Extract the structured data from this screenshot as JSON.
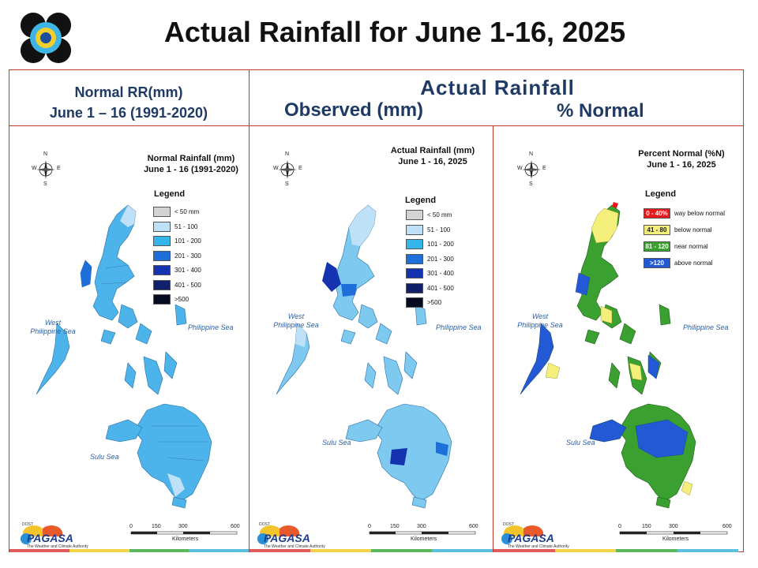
{
  "header": {
    "title": "Actual Rainfall for June 1-16, 2025",
    "normal_label_line1": "Normal RR(mm)",
    "normal_label_line2": "June 1 – 16 (1991-2020)",
    "actual_label": "Actual Rainfall",
    "observed_label": "Observed (mm)",
    "percent_label": "% Normal"
  },
  "maps": [
    {
      "title_line1": "Normal Rainfall (mm)",
      "title_line2": "June 1 - 16 (1991-2020)",
      "legend_title": "Legend",
      "legend": [
        {
          "label": "< 50 mm",
          "color": "#d3d3d3"
        },
        {
          "label": "51 - 100",
          "color": "#bfe1f7"
        },
        {
          "label": "101 - 200",
          "color": "#35b6ea"
        },
        {
          "label": "201 - 300",
          "color": "#1e6fd9"
        },
        {
          "label": "301 - 400",
          "color": "#1532b0"
        },
        {
          "label": "401 - 500",
          "color": "#10206a"
        },
        {
          "label": ">500",
          "color": "#060b22"
        }
      ],
      "land_color": "#4cb4ea"
    },
    {
      "title_line1": "Actual Rainfall (mm)",
      "title_line2": "June 1 - 16, 2025",
      "legend_title": "Legend",
      "legend": [
        {
          "label": "< 50 mm",
          "color": "#d3d3d3"
        },
        {
          "label": "51 - 100",
          "color": "#bfe1f7"
        },
        {
          "label": "101 - 200",
          "color": "#35b6ea"
        },
        {
          "label": "201 - 300",
          "color": "#1e6fd9"
        },
        {
          "label": "301 - 400",
          "color": "#1532b0"
        },
        {
          "label": "401 - 500",
          "color": "#10206a"
        },
        {
          "label": ">500",
          "color": "#060b22"
        }
      ],
      "land_color": "#7ec9f0"
    },
    {
      "title_line1": "Percent Normal (%N)",
      "title_line2": "June 1 - 16, 2025",
      "legend_title": "Legend",
      "legend": [
        {
          "swatch_text": "0 - 40%",
          "label": "way below normal",
          "color": "#e8191c",
          "text_color": "#ffffff"
        },
        {
          "swatch_text": "41 - 80",
          "label": "below normal",
          "color": "#f4ee7a",
          "text_color": "#222222"
        },
        {
          "swatch_text": "81 - 120",
          "label": "near normal",
          "color": "#3aa02f",
          "text_color": "#ffffff"
        },
        {
          "swatch_text": ">120",
          "label": "above normal",
          "color": "#2459d6",
          "text_color": "#ffffff"
        }
      ],
      "land_color": "#3aa02f"
    }
  ],
  "sea_labels": {
    "west_line1": "West",
    "west_line2": "Philippine Sea",
    "east": "Philippine Sea",
    "sulu": "Sulu Sea"
  },
  "compass": {
    "n": "N",
    "s": "S",
    "e": "E",
    "w": "W"
  },
  "scale": {
    "ticks": [
      "0",
      "150",
      "300",
      "600"
    ],
    "unit": "Kilometers"
  },
  "branding": {
    "org": "PAGASA",
    "tagline": "The Weather and Climate Authority",
    "small": "DOST"
  },
  "stripe_colors": [
    "#e05a5a",
    "#f3d34a",
    "#5cb85c",
    "#5bc0de"
  ]
}
